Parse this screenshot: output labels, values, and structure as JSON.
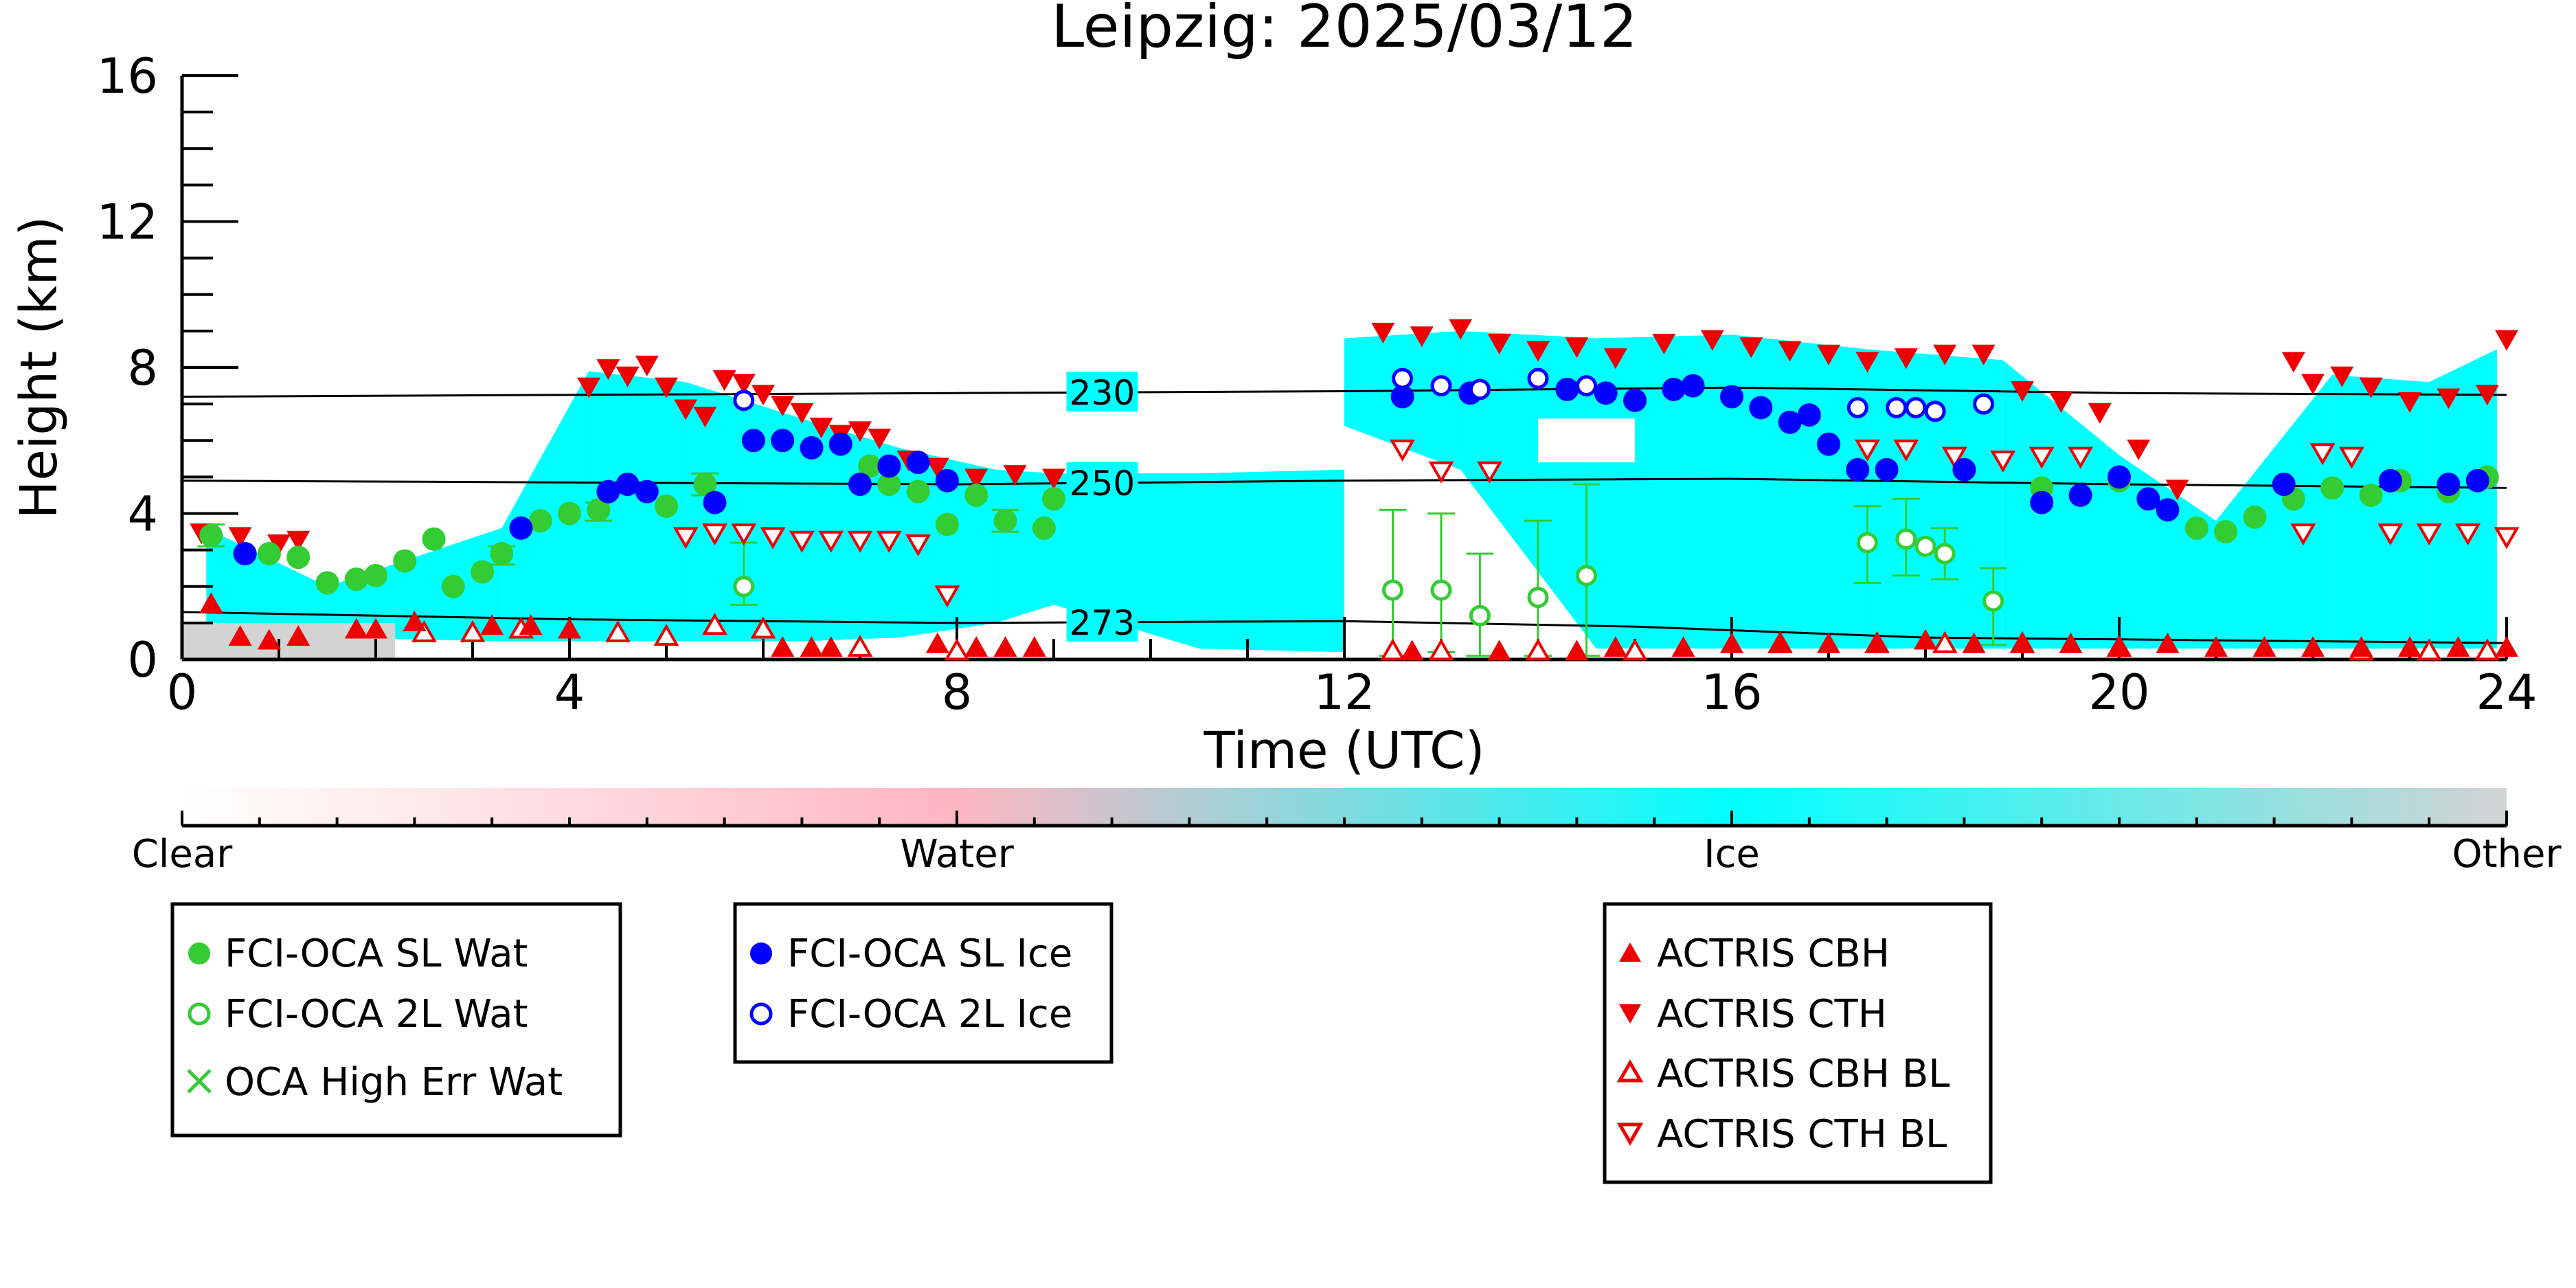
{
  "chart_data": {
    "type": "scatter",
    "title": "Leipzig: 2025/03/12",
    "xlabel": "Time (UTC)",
    "ylabel": "Height (km)",
    "xlim": [
      0,
      24
    ],
    "ylim": [
      0,
      16
    ],
    "x_ticks": [
      0,
      4,
      8,
      12,
      16,
      20,
      24
    ],
    "y_ticks": [
      0,
      4,
      8,
      12,
      16
    ],
    "grid": false,
    "colorbar": {
      "labels": [
        "Clear",
        "Water",
        "Ice",
        "Other"
      ],
      "colors": [
        "#ffffff",
        "#ffb6c1",
        "#00ffff",
        "#d3d3d3"
      ]
    },
    "isotherms": [
      {
        "label": "230",
        "x": [
          0,
          4,
          8,
          12,
          16,
          20,
          24
        ],
        "y": [
          7.2,
          7.25,
          7.3,
          7.35,
          7.45,
          7.3,
          7.25
        ]
      },
      {
        "label": "250",
        "x": [
          0,
          4,
          8,
          12,
          16,
          20,
          24
        ],
        "y": [
          4.9,
          4.85,
          4.8,
          4.9,
          4.95,
          4.8,
          4.7
        ]
      },
      {
        "label": "273",
        "x": [
          0,
          4,
          8,
          12,
          15,
          18,
          24
        ],
        "y": [
          1.3,
          1.1,
          1.0,
          1.05,
          0.9,
          0.6,
          0.45
        ]
      }
    ],
    "legend_groups": [
      [
        "FCI-OCA SL Wat",
        "FCI-OCA 2L Wat",
        "OCA High Err Wat"
      ],
      [
        "FCI-OCA SL Ice",
        "FCI-OCA 2L Ice"
      ],
      [
        "ACTRIS CBH",
        "ACTRIS CTH",
        "ACTRIS CBH BL",
        "ACTRIS CTH BL"
      ]
    ],
    "series": [
      {
        "name": "FCI-OCA SL Wat",
        "color": "#33cc33",
        "marker": "filled-circle",
        "x": [
          0.3,
          0.9,
          1.2,
          1.5,
          1.8,
          2.0,
          2.3,
          2.6,
          2.8,
          3.1,
          3.3,
          3.7,
          4.0,
          4.3,
          5.0,
          5.4,
          7.1,
          7.3,
          7.6,
          7.9,
          8.2,
          8.5,
          8.9,
          9.0,
          19.2,
          20.0,
          20.8,
          21.1,
          21.4,
          21.8,
          22.2,
          22.6,
          22.9,
          23.4,
          23.8
        ],
        "y": [
          3.4,
          2.9,
          2.8,
          2.1,
          2.2,
          2.3,
          2.7,
          3.3,
          2.0,
          2.4,
          2.9,
          3.8,
          4.0,
          4.1,
          4.2,
          4.8,
          5.3,
          4.8,
          4.6,
          3.7,
          4.5,
          3.8,
          3.6,
          4.4,
          4.7,
          4.9,
          3.6,
          3.5,
          3.9,
          4.4,
          4.7,
          4.5,
          4.9,
          4.6,
          5.0
        ],
        "errorbars": [
          {
            "x": 0.3,
            "low": 3.1,
            "high": 3.7
          },
          {
            "x": 3.3,
            "low": 2.6,
            "high": 3.1
          },
          {
            "x": 4.3,
            "low": 3.8,
            "high": 4.3
          },
          {
            "x": 5.4,
            "low": 4.5,
            "high": 5.1
          },
          {
            "x": 8.5,
            "low": 3.5,
            "high": 4.1
          }
        ]
      },
      {
        "name": "FCI-OCA 2L Wat",
        "color": "#33cc33",
        "marker": "open-circle",
        "x": [
          5.8,
          12.5,
          13.0,
          13.4,
          14.0,
          14.5,
          17.4,
          17.8,
          18.0,
          18.2,
          18.7
        ],
        "y": [
          2.0,
          1.9,
          1.9,
          1.2,
          1.7,
          2.3,
          3.2,
          3.3,
          3.1,
          2.9,
          1.6
        ],
        "errorbars": [
          {
            "x": 5.8,
            "low": 1.5,
            "high": 3.2
          },
          {
            "x": 12.5,
            "low": 0.1,
            "high": 4.1
          },
          {
            "x": 13.0,
            "low": 0.2,
            "high": 4.0
          },
          {
            "x": 13.4,
            "low": 0.1,
            "high": 2.9
          },
          {
            "x": 14.0,
            "low": 0.1,
            "high": 3.8
          },
          {
            "x": 14.5,
            "low": 0.1,
            "high": 4.8
          },
          {
            "x": 17.4,
            "low": 2.1,
            "high": 4.2
          },
          {
            "x": 17.8,
            "low": 2.3,
            "high": 4.4
          },
          {
            "x": 18.2,
            "low": 2.2,
            "high": 3.6
          },
          {
            "x": 18.7,
            "low": 0.4,
            "high": 2.5
          }
        ]
      },
      {
        "name": "OCA High Err Wat",
        "color": "#33cc33",
        "marker": "x",
        "x": [],
        "y": []
      },
      {
        "name": "FCI-OCA SL Ice",
        "color": "#0000ff",
        "marker": "filled-circle",
        "x": [
          0.65,
          3.5,
          4.4,
          4.6,
          4.8,
          5.5,
          5.9,
          6.2,
          6.5,
          6.8,
          7.0,
          7.3,
          7.6,
          7.9,
          12.6,
          13.3,
          14.3,
          14.7,
          15.0,
          15.4,
          15.6,
          16.0,
          16.3,
          16.6,
          16.8,
          17.0,
          17.3,
          17.6,
          18.4,
          19.2,
          19.6,
          20.0,
          20.3,
          20.5,
          21.7,
          22.8,
          23.4,
          23.7
        ],
        "y": [
          2.9,
          3.6,
          4.6,
          4.8,
          4.6,
          4.3,
          6.0,
          6.0,
          5.8,
          5.9,
          4.8,
          5.3,
          5.4,
          4.9,
          7.2,
          7.3,
          7.4,
          7.3,
          7.1,
          7.4,
          7.5,
          7.2,
          6.9,
          6.5,
          6.7,
          5.9,
          5.2,
          5.2,
          5.2,
          4.3,
          4.5,
          5.0,
          4.4,
          4.1,
          4.8,
          4.9,
          4.8,
          4.9
        ]
      },
      {
        "name": "FCI-OCA 2L Ice",
        "color": "#0000ff",
        "marker": "open-circle",
        "x": [
          5.8,
          12.6,
          13.0,
          13.4,
          14.0,
          14.5,
          17.3,
          17.7,
          17.9,
          18.1,
          18.6
        ],
        "y": [
          7.1,
          7.7,
          7.5,
          7.4,
          7.7,
          7.5,
          6.9,
          6.9,
          6.9,
          6.8,
          7.0
        ]
      },
      {
        "name": "ACTRIS CBH",
        "color": "#ee0000",
        "marker": "filled-triangle-up",
        "x": [
          0.3,
          0.6,
          0.9,
          1.2,
          1.8,
          2.0,
          2.4,
          3.2,
          3.6,
          4.0,
          6.2,
          6.5,
          6.7,
          7.8,
          8.2,
          8.5,
          8.8,
          12.7,
          13.6,
          14.4,
          14.8,
          15.5,
          16.0,
          16.5,
          17.0,
          17.5,
          18.0,
          18.5,
          19.0,
          19.5,
          20.0,
          20.5,
          21.0,
          21.5,
          22.0,
          22.5,
          23.0,
          23.5,
          24.0
        ],
        "y": [
          1.5,
          0.6,
          0.5,
          0.6,
          0.8,
          0.8,
          1.0,
          0.9,
          0.9,
          0.8,
          0.3,
          0.3,
          0.3,
          0.4,
          0.3,
          0.3,
          0.3,
          0.2,
          0.2,
          0.2,
          0.3,
          0.3,
          0.4,
          0.4,
          0.4,
          0.4,
          0.5,
          0.4,
          0.4,
          0.4,
          0.3,
          0.4,
          0.3,
          0.3,
          0.3,
          0.3,
          0.3,
          0.3,
          0.3
        ]
      },
      {
        "name": "ACTRIS CTH",
        "color": "#ee0000",
        "marker": "filled-triangle-down",
        "x": [
          0.2,
          0.6,
          1.0,
          1.2,
          4.2,
          4.4,
          4.6,
          4.8,
          5.0,
          5.2,
          5.4,
          5.6,
          5.8,
          6.0,
          6.2,
          6.4,
          6.6,
          6.8,
          7.0,
          7.2,
          7.5,
          7.8,
          8.2,
          8.6,
          9.0,
          12.4,
          12.8,
          13.2,
          13.6,
          14.0,
          14.4,
          14.8,
          15.3,
          15.8,
          16.2,
          16.6,
          17.0,
          17.4,
          17.8,
          18.2,
          18.6,
          19.0,
          19.4,
          19.8,
          20.2,
          20.6,
          21.8,
          22.0,
          22.3,
          22.6,
          23.0,
          23.4,
          23.8,
          24.0
        ],
        "y": [
          3.5,
          3.4,
          3.2,
          3.3,
          7.5,
          8.0,
          7.8,
          8.1,
          7.5,
          6.9,
          6.7,
          7.7,
          7.6,
          7.3,
          7.0,
          6.8,
          6.4,
          6.2,
          6.3,
          6.1,
          5.5,
          5.3,
          5.0,
          5.1,
          5.0,
          9.0,
          8.9,
          9.1,
          8.7,
          8.5,
          8.6,
          8.3,
          8.7,
          8.8,
          8.6,
          8.5,
          8.4,
          8.2,
          8.3,
          8.4,
          8.4,
          7.4,
          7.1,
          6.8,
          5.8,
          4.7,
          8.2,
          7.6,
          7.8,
          7.5,
          7.1,
          7.2,
          7.3,
          8.8
        ]
      },
      {
        "name": "ACTRIS CBH BL",
        "color": "#ee0000",
        "marker": "open-triangle-up",
        "x": [
          2.5,
          3.0,
          3.5,
          4.5,
          5.0,
          5.5,
          6.0,
          7.0,
          8.0,
          12.5,
          13.0,
          14.0,
          15.0,
          16.5,
          17.5,
          18.2,
          19.0,
          20.0,
          22.5,
          23.2,
          23.8
        ],
        "y": [
          0.7,
          0.7,
          0.8,
          0.7,
          0.6,
          0.9,
          0.8,
          0.3,
          0.2,
          0.2,
          0.2,
          0.2,
          0.2,
          0.4,
          0.4,
          0.4,
          0.4,
          0.3,
          0.2,
          0.2,
          0.2
        ]
      },
      {
        "name": "ACTRIS CTH BL",
        "color": "#ee0000",
        "marker": "open-triangle-down",
        "x": [
          5.2,
          5.5,
          5.8,
          6.1,
          6.4,
          6.7,
          7.0,
          7.3,
          7.6,
          7.9,
          12.6,
          13.0,
          13.5,
          17.4,
          17.8,
          18.3,
          18.8,
          19.2,
          19.6,
          21.9,
          22.1,
          22.4,
          22.8,
          23.2,
          23.6,
          24.0
        ],
        "y": [
          3.4,
          3.5,
          3.5,
          3.4,
          3.3,
          3.3,
          3.3,
          3.3,
          3.2,
          1.8,
          5.8,
          5.2,
          5.2,
          5.8,
          5.8,
          5.6,
          5.5,
          5.6,
          5.6,
          3.5,
          5.7,
          5.6,
          3.5,
          3.5,
          3.5,
          3.4
        ]
      }
    ]
  }
}
